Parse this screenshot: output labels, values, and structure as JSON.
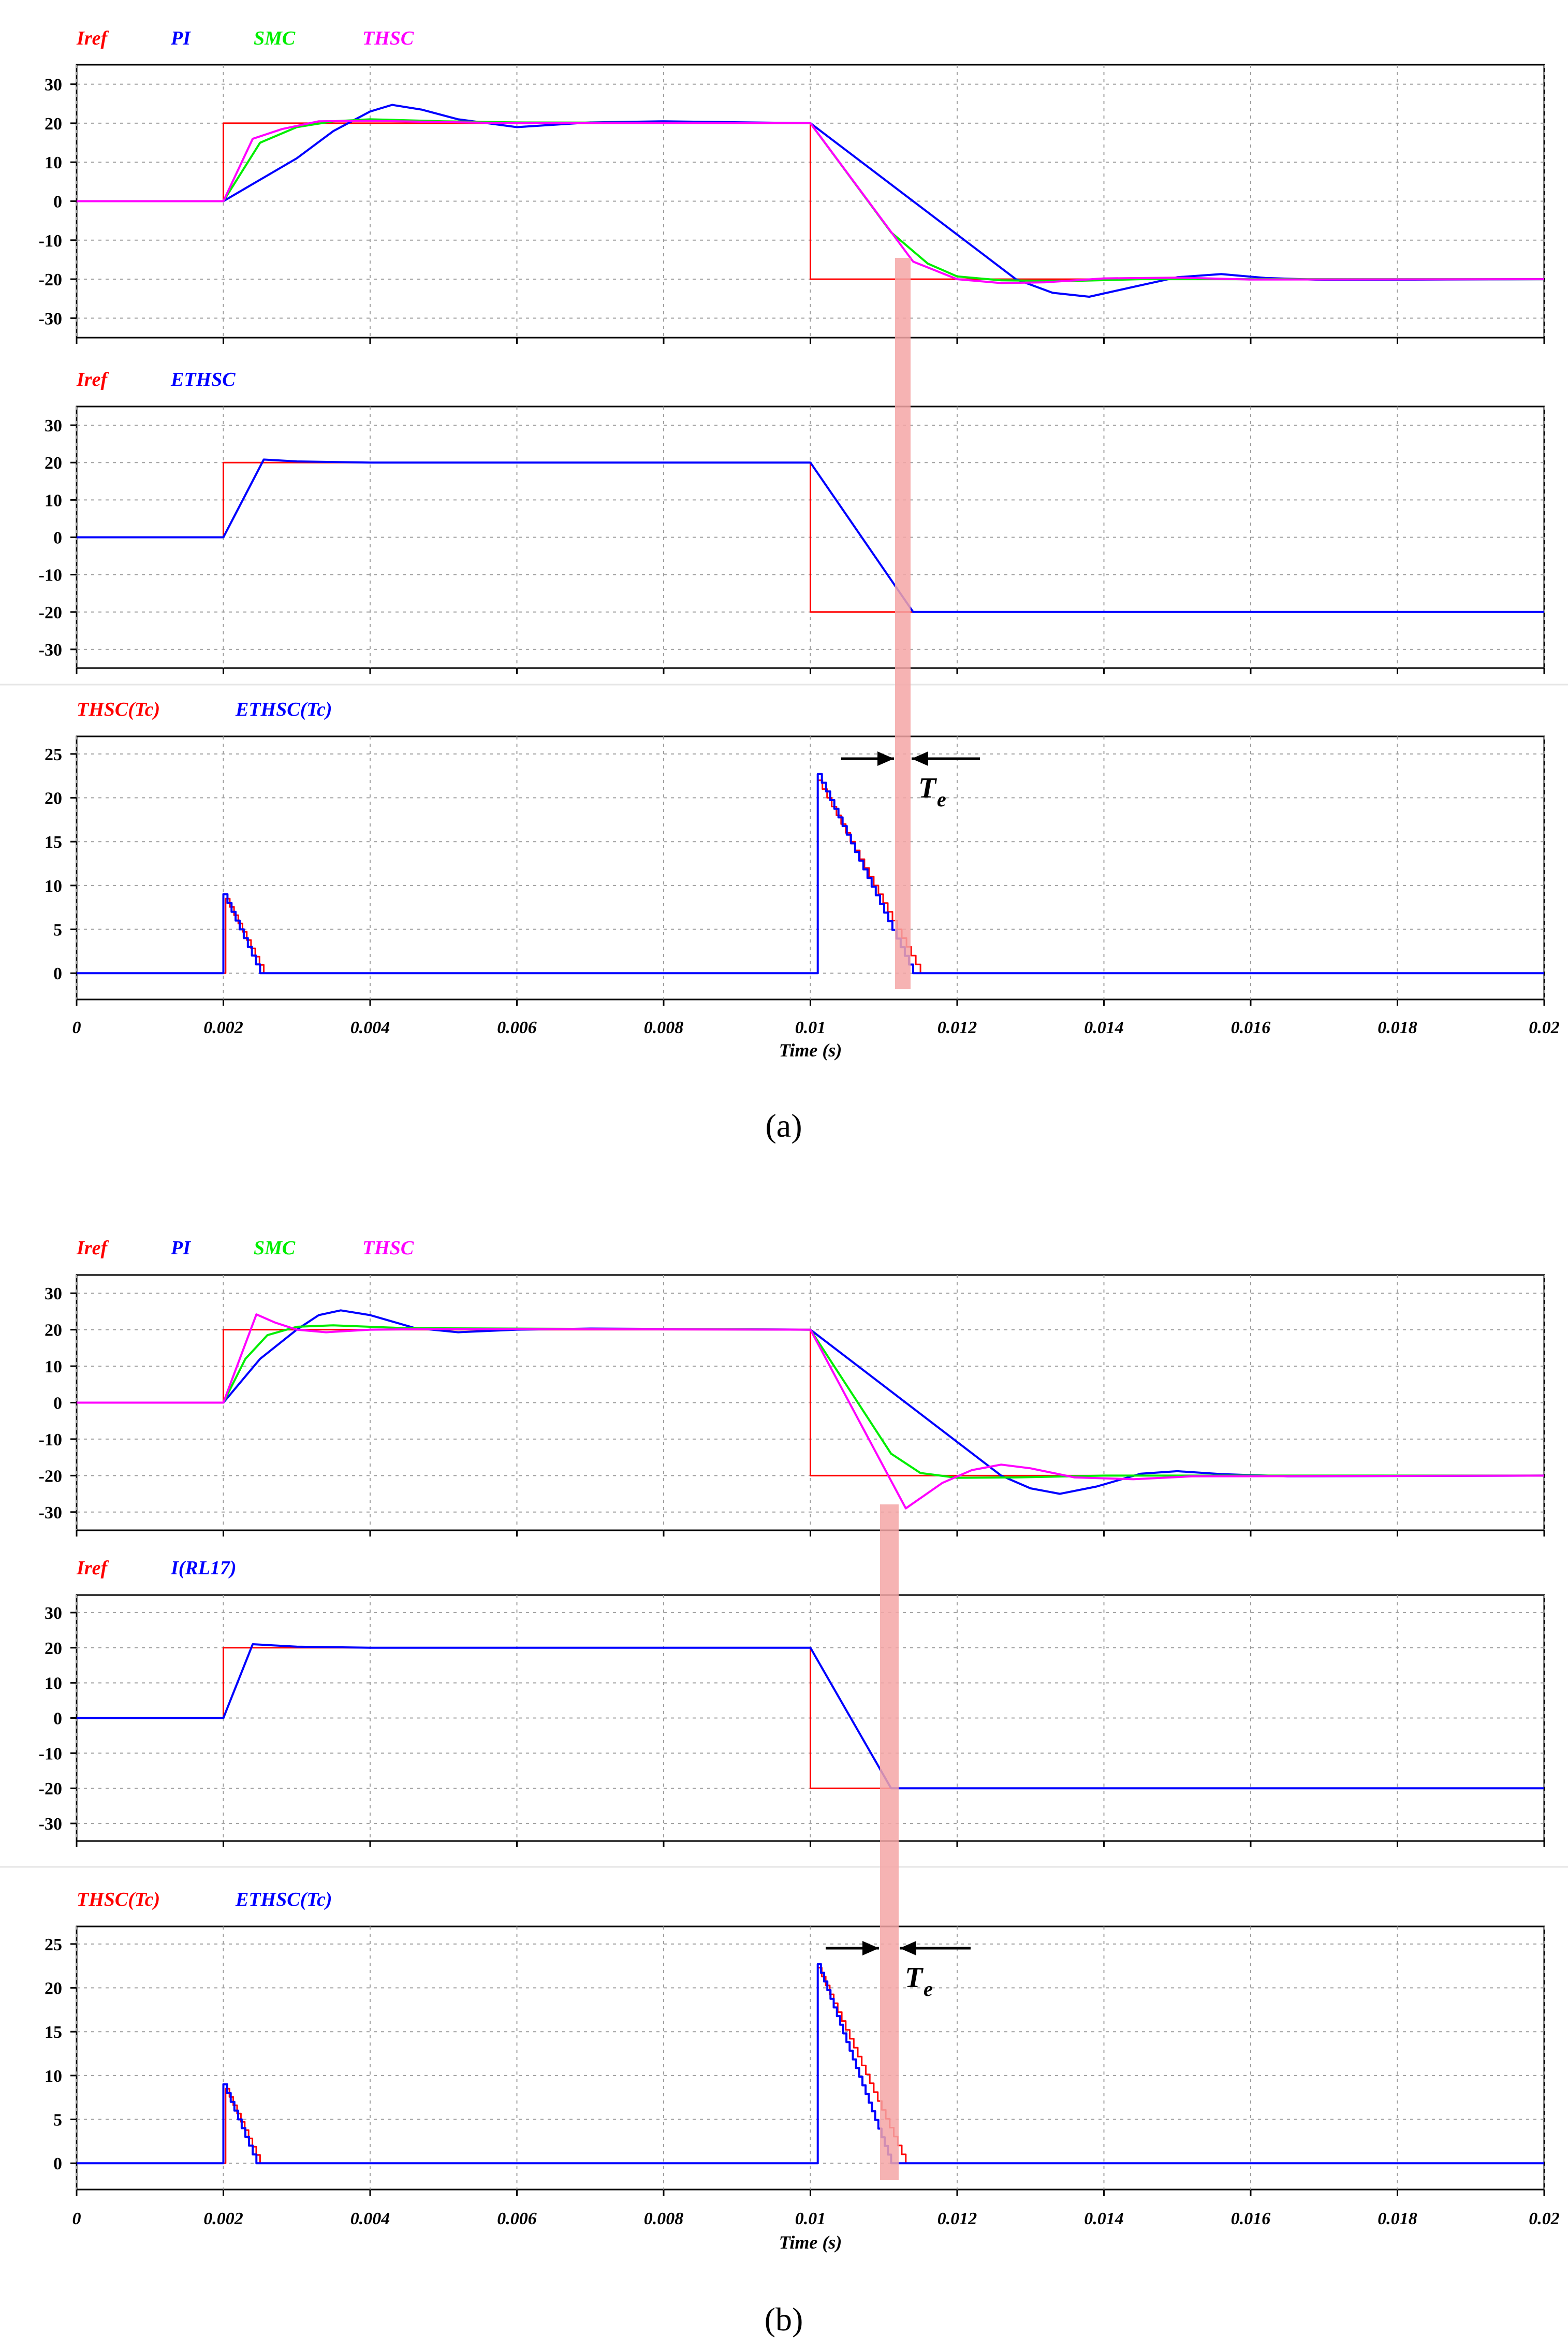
{
  "figure": {
    "panels": [
      {
        "caption": "(a)",
        "subplots": [
          {
            "legend": [
              "Iref",
              "PI",
              "SMC",
              "THSC"
            ]
          },
          {
            "legend": [
              "Iref",
              "ETHSC"
            ]
          },
          {
            "legend": [
              "THSC(Tc)",
              "ETHSC(Tc)"
            ]
          }
        ],
        "xlabel": "Time (s)",
        "annotation": {
          "symbol": "T",
          "subscript": "e"
        }
      },
      {
        "caption": "(b)",
        "subplots": [
          {
            "legend": [
              "Iref",
              "PI",
              "SMC",
              "THSC"
            ]
          },
          {
            "legend": [
              "Iref",
              "I(RL17)"
            ]
          },
          {
            "legend": [
              "THSC(Tc)",
              "ETHSC(Tc)"
            ]
          }
        ],
        "xlabel": "Time (s)",
        "annotation": {
          "symbol": "T",
          "subscript": "e"
        }
      }
    ]
  },
  "colors": {
    "Iref": "#ff0000",
    "PI": "#0000ff",
    "SMC": "#00ee00",
    "THSC": "#ff00ff",
    "ETHSC": "#0000ff",
    "I(RL17)": "#0000ff",
    "THSC(Tc)": "#ff0000",
    "ETHSC(Tc)": "#0000ff",
    "highlight": "#f4a6a6",
    "grid": "#a0a0a0"
  },
  "chart_data": [
    {
      "type": "line",
      "title": "",
      "xlabel": "",
      "ylabel": "",
      "xlim": [
        0,
        0.02
      ],
      "ylim": [
        -35,
        35
      ],
      "x_ticks": [],
      "y_ticks": [
        30,
        20,
        10,
        0,
        -10,
        -20,
        -30
      ],
      "grid": true,
      "legend_position": "top-left",
      "series": [
        {
          "name": "Iref",
          "points": [
            [
              0,
              0
            ],
            [
              0.002,
              0
            ],
            [
              0.002,
              20
            ],
            [
              0.01,
              20
            ],
            [
              0.01,
              -20
            ],
            [
              0.02,
              -20
            ]
          ]
        },
        {
          "name": "PI",
          "points": [
            [
              0,
              0
            ],
            [
              0.002,
              0
            ],
            [
              0.003,
              11
            ],
            [
              0.0035,
              18
            ],
            [
              0.004,
              23
            ],
            [
              0.0043,
              24.7
            ],
            [
              0.0047,
              23.5
            ],
            [
              0.0052,
              21
            ],
            [
              0.006,
              19
            ],
            [
              0.007,
              20.2
            ],
            [
              0.008,
              20.5
            ],
            [
              0.01,
              20
            ],
            [
              0.0128,
              -20
            ],
            [
              0.0133,
              -23.5
            ],
            [
              0.0138,
              -24.5
            ],
            [
              0.0144,
              -22
            ],
            [
              0.015,
              -19.5
            ],
            [
              0.0156,
              -18.7
            ],
            [
              0.0162,
              -19.7
            ],
            [
              0.017,
              -20.2
            ],
            [
              0.02,
              -20
            ]
          ]
        },
        {
          "name": "SMC",
          "points": [
            [
              0,
              0
            ],
            [
              0.002,
              0
            ],
            [
              0.0025,
              15
            ],
            [
              0.003,
              19
            ],
            [
              0.0035,
              20.5
            ],
            [
              0.004,
              21
            ],
            [
              0.005,
              20.5
            ],
            [
              0.006,
              20.2
            ],
            [
              0.01,
              20
            ],
            [
              0.0111,
              -8
            ],
            [
              0.0116,
              -16
            ],
            [
              0.012,
              -19.3
            ],
            [
              0.0126,
              -20.3
            ],
            [
              0.0135,
              -20.5
            ],
            [
              0.0145,
              -20
            ],
            [
              0.02,
              -20
            ]
          ]
        },
        {
          "name": "THSC",
          "points": [
            [
              0,
              0
            ],
            [
              0.002,
              0
            ],
            [
              0.0024,
              16
            ],
            [
              0.0028,
              18.5
            ],
            [
              0.0033,
              20.5
            ],
            [
              0.004,
              20.6
            ],
            [
              0.005,
              20.3
            ],
            [
              0.006,
              20
            ],
            [
              0.01,
              20
            ],
            [
              0.0114,
              -15.5
            ],
            [
              0.012,
              -20
            ],
            [
              0.0126,
              -21
            ],
            [
              0.0132,
              -20.8
            ],
            [
              0.014,
              -19.8
            ],
            [
              0.015,
              -19.6
            ],
            [
              0.016,
              -20.1
            ],
            [
              0.02,
              -20
            ]
          ]
        }
      ]
    },
    {
      "type": "line",
      "title": "",
      "xlabel": "",
      "ylabel": "",
      "xlim": [
        0,
        0.02
      ],
      "ylim": [
        -35,
        35
      ],
      "x_ticks": [],
      "y_ticks": [
        30,
        20,
        10,
        0,
        -10,
        -20,
        -30
      ],
      "grid": true,
      "legend_position": "top-left",
      "series": [
        {
          "name": "Iref",
          "points": [
            [
              0,
              0
            ],
            [
              0.002,
              0
            ],
            [
              0.002,
              20
            ],
            [
              0.01,
              20
            ],
            [
              0.01,
              -20
            ],
            [
              0.02,
              -20
            ]
          ]
        },
        {
          "name": "ETHSC",
          "points": [
            [
              0,
              0
            ],
            [
              0.002,
              0
            ],
            [
              0.00255,
              20.8
            ],
            [
              0.003,
              20.3
            ],
            [
              0.004,
              20
            ],
            [
              0.01,
              20
            ],
            [
              0.0114,
              -20
            ],
            [
              0.02,
              -20
            ]
          ]
        }
      ]
    },
    {
      "type": "line",
      "title": "",
      "xlabel": "Time (s)",
      "ylabel": "",
      "xlim": [
        0,
        0.02
      ],
      "ylim": [
        -3,
        27
      ],
      "x_ticks": [
        "0",
        "0.002",
        "0.004",
        "0.006",
        "0.008",
        "0.01",
        "0.012",
        "0.014",
        "0.016",
        "0.018",
        "0.02"
      ],
      "y_ticks": [
        25,
        20,
        15,
        10,
        5,
        0
      ],
      "grid": true,
      "legend_position": "top-left",
      "series": [
        {
          "name": "THSC(Tc)",
          "points": [
            [
              0,
              0
            ],
            [
              0.00203,
              0
            ],
            [
              0.00203,
              8.5
            ],
            [
              0.00255,
              0
            ],
            [
              0.0101,
              0
            ],
            [
              0.0101,
              22
            ],
            [
              0.0115,
              0
            ],
            [
              0.02,
              0
            ]
          ]
        },
        {
          "name": "ETHSC(Tc)",
          "points": [
            [
              0,
              0
            ],
            [
              0.002,
              0
            ],
            [
              0.002,
              9
            ],
            [
              0.0025,
              0
            ],
            [
              0.0101,
              0
            ],
            [
              0.0101,
              22.7
            ],
            [
              0.0114,
              0
            ],
            [
              0.02,
              0
            ]
          ]
        }
      ]
    },
    {
      "type": "line",
      "title": "",
      "xlabel": "",
      "ylabel": "",
      "xlim": [
        0,
        0.02
      ],
      "ylim": [
        -35,
        35
      ],
      "x_ticks": [],
      "y_ticks": [
        30,
        20,
        10,
        0,
        -10,
        -20,
        -30
      ],
      "grid": true,
      "legend_position": "top-left",
      "series": [
        {
          "name": "Iref",
          "points": [
            [
              0,
              0
            ],
            [
              0.002,
              0
            ],
            [
              0.002,
              20
            ],
            [
              0.01,
              20
            ],
            [
              0.01,
              -20
            ],
            [
              0.02,
              -20
            ]
          ]
        },
        {
          "name": "PI",
          "points": [
            [
              0,
              0
            ],
            [
              0.002,
              0
            ],
            [
              0.0025,
              12
            ],
            [
              0.003,
              20
            ],
            [
              0.0033,
              24
            ],
            [
              0.0036,
              25.3
            ],
            [
              0.004,
              24
            ],
            [
              0.0046,
              20.5
            ],
            [
              0.0052,
              19.3
            ],
            [
              0.006,
              20
            ],
            [
              0.007,
              20.3
            ],
            [
              0.01,
              20
            ],
            [
              0.0126,
              -20
            ],
            [
              0.013,
              -23.5
            ],
            [
              0.0134,
              -25
            ],
            [
              0.0139,
              -23
            ],
            [
              0.0145,
              -19.5
            ],
            [
              0.015,
              -18.8
            ],
            [
              0.0156,
              -19.6
            ],
            [
              0.0165,
              -20.2
            ],
            [
              0.02,
              -20
            ]
          ]
        },
        {
          "name": "SMC",
          "points": [
            [
              0,
              0
            ],
            [
              0.002,
              0
            ],
            [
              0.0023,
              12
            ],
            [
              0.0026,
              18.5
            ],
            [
              0.003,
              20.8
            ],
            [
              0.0035,
              21.2
            ],
            [
              0.0045,
              20.4
            ],
            [
              0.01,
              20
            ],
            [
              0.0111,
              -14
            ],
            [
              0.0115,
              -19.3
            ],
            [
              0.012,
              -20.6
            ],
            [
              0.0128,
              -20.5
            ],
            [
              0.014,
              -20
            ],
            [
              0.02,
              -20
            ]
          ]
        },
        {
          "name": "THSC",
          "points": [
            [
              0,
              0
            ],
            [
              0.002,
              0
            ],
            [
              0.00245,
              24.2
            ],
            [
              0.0027,
              22
            ],
            [
              0.003,
              20
            ],
            [
              0.0034,
              19.3
            ],
            [
              0.004,
              20
            ],
            [
              0.005,
              20.2
            ],
            [
              0.01,
              20
            ],
            [
              0.0113,
              -29
            ],
            [
              0.0118,
              -22
            ],
            [
              0.0122,
              -18.5
            ],
            [
              0.0126,
              -17
            ],
            [
              0.013,
              -18
            ],
            [
              0.0136,
              -20.5
            ],
            [
              0.0144,
              -21
            ],
            [
              0.0152,
              -20.2
            ],
            [
              0.02,
              -20
            ]
          ]
        }
      ]
    },
    {
      "type": "line",
      "title": "",
      "xlabel": "",
      "ylabel": "",
      "xlim": [
        0,
        0.02
      ],
      "ylim": [
        -35,
        35
      ],
      "x_ticks": [],
      "y_ticks": [
        30,
        20,
        10,
        0,
        -10,
        -20,
        -30
      ],
      "grid": true,
      "legend_position": "top-left",
      "series": [
        {
          "name": "Iref",
          "points": [
            [
              0,
              0
            ],
            [
              0.002,
              0
            ],
            [
              0.002,
              20
            ],
            [
              0.01,
              20
            ],
            [
              0.01,
              -20
            ],
            [
              0.02,
              -20
            ]
          ]
        },
        {
          "name": "I(RL17)",
          "points": [
            [
              0,
              0
            ],
            [
              0.002,
              0
            ],
            [
              0.0024,
              21
            ],
            [
              0.003,
              20.3
            ],
            [
              0.004,
              20
            ],
            [
              0.01,
              20
            ],
            [
              0.0111,
              -20
            ],
            [
              0.02,
              -20
            ]
          ]
        }
      ]
    },
    {
      "type": "line",
      "title": "",
      "xlabel": "Time (s)",
      "ylabel": "",
      "xlim": [
        0,
        0.02
      ],
      "ylim": [
        -3,
        27
      ],
      "x_ticks": [
        "0",
        "0.002",
        "0.004",
        "0.006",
        "0.008",
        "0.01",
        "0.012",
        "0.014",
        "0.016",
        "0.018",
        "0.02"
      ],
      "y_ticks": [
        25,
        20,
        15,
        10,
        5,
        0
      ],
      "grid": true,
      "legend_position": "top-left",
      "series": [
        {
          "name": "THSC(Tc)",
          "points": [
            [
              0,
              0
            ],
            [
              0.00203,
              0
            ],
            [
              0.00203,
              8.5
            ],
            [
              0.0025,
              0
            ],
            [
              0.0101,
              0
            ],
            [
              0.0101,
              22.3
            ],
            [
              0.0113,
              0
            ],
            [
              0.02,
              0
            ]
          ]
        },
        {
          "name": "ETHSC(Tc)",
          "points": [
            [
              0,
              0
            ],
            [
              0.002,
              0
            ],
            [
              0.002,
              9
            ],
            [
              0.00245,
              0
            ],
            [
              0.0101,
              0
            ],
            [
              0.0101,
              22.7
            ],
            [
              0.0111,
              0
            ],
            [
              0.02,
              0
            ]
          ]
        }
      ]
    }
  ]
}
